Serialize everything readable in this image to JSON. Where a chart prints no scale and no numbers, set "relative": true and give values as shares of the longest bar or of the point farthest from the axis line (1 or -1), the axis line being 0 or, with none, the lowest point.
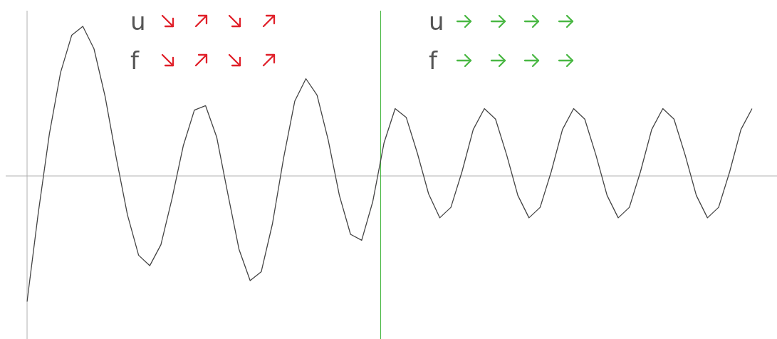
{
  "chart_data": {
    "type": "line",
    "relative": true,
    "marker": "none",
    "categories": [
      null,
      null,
      null,
      null,
      null,
      null,
      null,
      null,
      null,
      null,
      null,
      null,
      null,
      null,
      null,
      null,
      null,
      null,
      null,
      null,
      null,
      null,
      null,
      null,
      null,
      null,
      null,
      null,
      null,
      null,
      null,
      null,
      null,
      null,
      null,
      null,
      null,
      null,
      null,
      null,
      null,
      null,
      null,
      null,
      null,
      null,
      null,
      null,
      null,
      null,
      null,
      null,
      null,
      null,
      null,
      null,
      null,
      null,
      null,
      null,
      null,
      null,
      null,
      null,
      null,
      null
    ],
    "series": [
      {
        "color": "#444444",
        "values": [
          -0.84,
          -0.25,
          0.28,
          0.69,
          0.94,
          1.0,
          0.85,
          0.53,
          0.12,
          -0.26,
          -0.53,
          -0.6,
          -0.46,
          -0.15,
          0.2,
          0.44,
          0.47,
          0.26,
          -0.12,
          -0.49,
          -0.7,
          -0.64,
          -0.32,
          0.12,
          0.5,
          0.65,
          0.54,
          0.24,
          -0.13,
          -0.39,
          -0.43,
          -0.17,
          0.22,
          0.45,
          0.39,
          0.15,
          -0.12,
          -0.28,
          -0.21,
          0.03,
          0.31,
          0.45,
          0.38,
          0.14,
          -0.13,
          -0.28,
          -0.21,
          0.03,
          0.31,
          0.45,
          0.38,
          0.14,
          -0.13,
          -0.28,
          -0.21,
          0.03,
          0.31,
          0.45,
          0.38,
          0.14,
          -0.13,
          -0.28,
          -0.21,
          0.03,
          0.31,
          0.45
        ]
      }
    ],
    "annotations": [
      "u",
      "f",
      "u",
      "f"
    ]
  }
}
